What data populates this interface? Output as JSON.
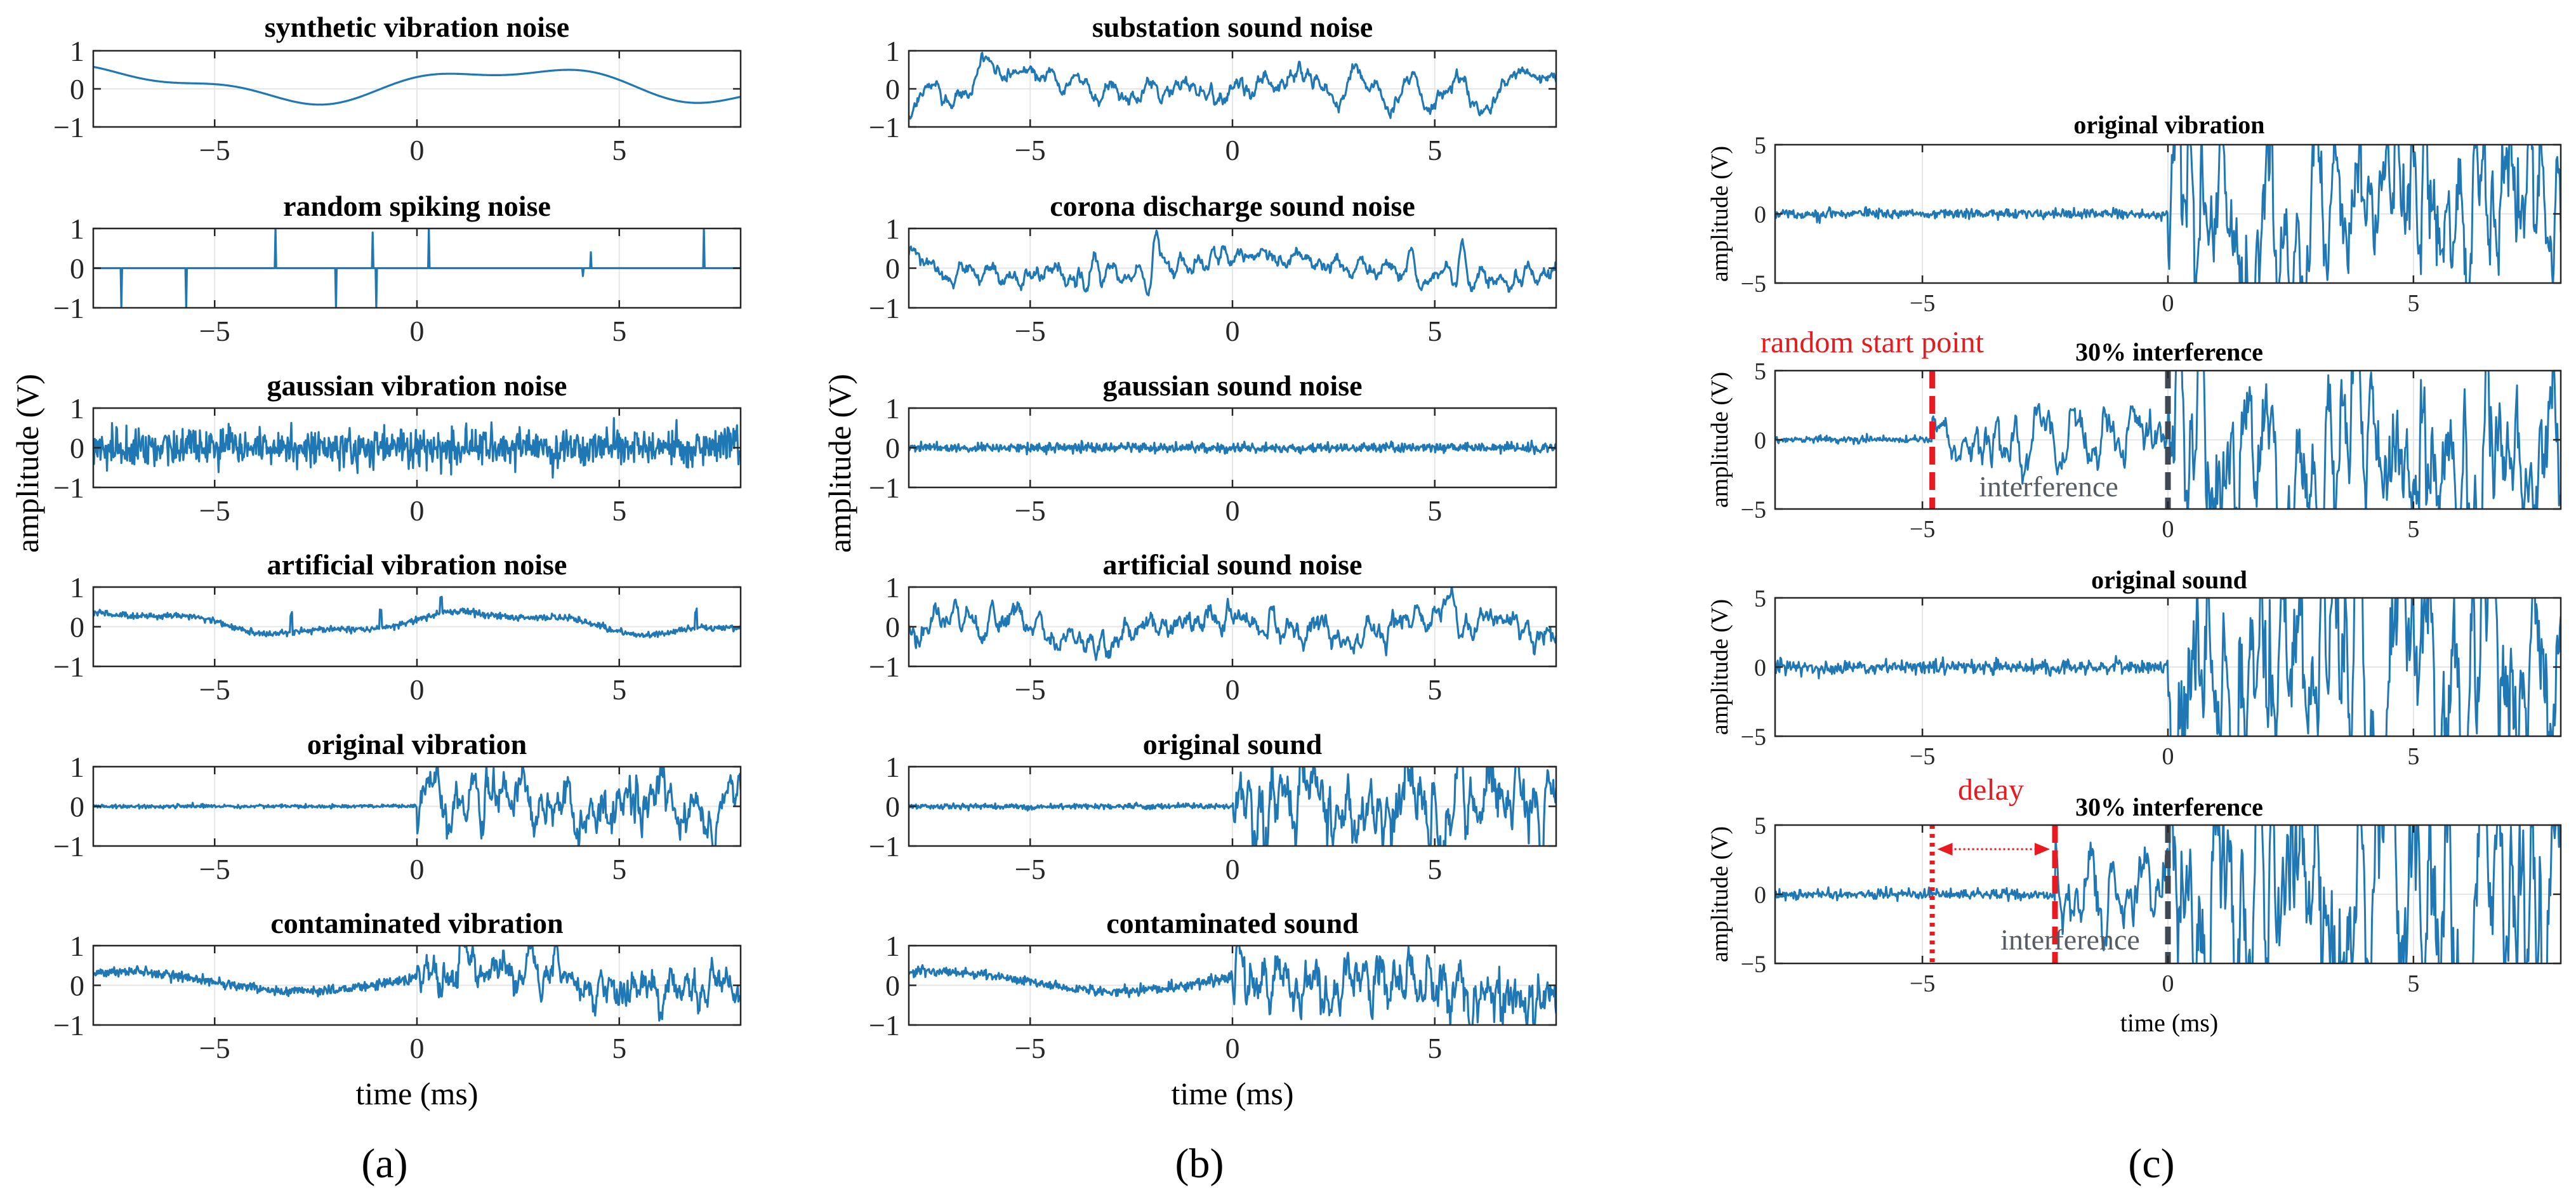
{
  "figure": {
    "panel_labels": [
      "(a)",
      "(b)",
      "(c)"
    ],
    "trace_color": "#1f77b4",
    "annotation_color": "#e8191f",
    "marker_color": "#404a54",
    "axis_color": "#262626",
    "grid_color": "#e6e6e6"
  },
  "chart_data": [
    {
      "type": "line",
      "id": "a-synthetic-vibration-noise",
      "title": "synthetic vibration noise",
      "xlim": [
        -8,
        8
      ],
      "ylim": [
        -1,
        1
      ],
      "xticks": [
        -5,
        0,
        5
      ],
      "yticks": [
        -1,
        0,
        1
      ],
      "xtick_labels": [
        "−5",
        "0",
        "5"
      ],
      "ytick_labels": [
        "−1",
        "0",
        "1"
      ],
      "grid": true,
      "series": [
        {
          "name": "synthetic vibration noise",
          "kind": "synthetic",
          "amplitude": 0.55
        }
      ]
    },
    {
      "type": "line",
      "id": "a-random-spiking-noise",
      "title": "random spiking noise",
      "xlim": [
        -8,
        8
      ],
      "ylim": [
        -1,
        1
      ],
      "xticks": [
        -5,
        0,
        5
      ],
      "yticks": [
        -1,
        0,
        1
      ],
      "xtick_labels": [
        "−5",
        "0",
        "5"
      ],
      "ytick_labels": [
        "−1",
        "0",
        "1"
      ],
      "grid": true,
      "series": [
        {
          "name": "random spiking noise",
          "kind": "spikes",
          "spikes": [
            [
              -7.3,
              -1.0
            ],
            [
              -5.7,
              -1.0
            ],
            [
              -3.5,
              1.0
            ],
            [
              -2.0,
              -1.0
            ],
            [
              -1.1,
              0.9
            ],
            [
              -1.0,
              -1.0
            ],
            [
              0.3,
              1.0
            ],
            [
              4.3,
              0.4
            ],
            [
              4.1,
              -0.2
            ],
            [
              7.1,
              1.0
            ]
          ]
        }
      ]
    },
    {
      "type": "line",
      "id": "a-gaussian-vibration-noise",
      "title": "gaussian vibration noise",
      "xlim": [
        -8,
        8
      ],
      "ylim": [
        -1,
        1
      ],
      "xticks": [
        -5,
        0,
        5
      ],
      "yticks": [
        -1,
        0,
        1
      ],
      "xtick_labels": [
        "−5",
        "0",
        "5"
      ],
      "ytick_labels": [
        "−1",
        "0",
        "1"
      ],
      "grid": true,
      "series": [
        {
          "name": "gaussian vibration noise",
          "kind": "gaussian",
          "sigma": 0.25
        }
      ]
    },
    {
      "type": "line",
      "id": "a-artificial-vibration-noise",
      "title": "artificial vibration noise",
      "xlim": [
        -8,
        8
      ],
      "ylim": [
        -1,
        1
      ],
      "xticks": [
        -5,
        0,
        5
      ],
      "yticks": [
        -1,
        0,
        1
      ],
      "xtick_labels": [
        "−5",
        "0",
        "5"
      ],
      "ytick_labels": [
        "−1",
        "0",
        "1"
      ],
      "grid": true,
      "series": [
        {
          "name": "artificial vibration noise",
          "kind": "artificial",
          "amplitude": 0.45
        }
      ]
    },
    {
      "type": "line",
      "id": "a-original-vibration",
      "title": "original vibration",
      "xlim": [
        -8,
        8
      ],
      "ylim": [
        -1,
        1
      ],
      "xticks": [
        -5,
        0,
        5
      ],
      "yticks": [
        -1,
        0,
        1
      ],
      "xtick_labels": [
        "−5",
        "0",
        "5"
      ],
      "ytick_labels": [
        "−1",
        "0",
        "1"
      ],
      "grid": true,
      "series": [
        {
          "name": "original vibration",
          "kind": "onset",
          "onset": 0,
          "amplitude": 0.55
        }
      ]
    },
    {
      "type": "line",
      "id": "a-contaminated-vibration",
      "title": "contaminated vibration",
      "xlim": [
        -8,
        8
      ],
      "ylim": [
        -1,
        1
      ],
      "xticks": [
        -5,
        0,
        5
      ],
      "yticks": [
        -1,
        0,
        1
      ],
      "xtick_labels": [
        "−5",
        "0",
        "5"
      ],
      "ytick_labels": [
        "−1",
        "0",
        "1"
      ],
      "grid": true,
      "series": [
        {
          "name": "contaminated vibration",
          "kind": "contaminated",
          "amplitude": 0.6
        }
      ]
    },
    {
      "type": "line",
      "id": "b-substation-sound-noise",
      "title": "substation sound noise",
      "xlim": [
        -8,
        8
      ],
      "ylim": [
        -1,
        1
      ],
      "xticks": [
        -5,
        0,
        5
      ],
      "yticks": [
        -1,
        0,
        1
      ],
      "xtick_labels": [
        "−5",
        "0",
        "5"
      ],
      "ytick_labels": [
        "−1",
        "0",
        "1"
      ],
      "grid": true,
      "series": [
        {
          "name": "substation sound noise",
          "kind": "substation",
          "amplitude": 0.45
        }
      ]
    },
    {
      "type": "line",
      "id": "b-corona-discharge-sound-noise",
      "title": "corona discharge sound noise",
      "xlim": [
        -8,
        8
      ],
      "ylim": [
        -1,
        1
      ],
      "xticks": [
        -5,
        0,
        5
      ],
      "yticks": [
        -1,
        0,
        1
      ],
      "xtick_labels": [
        "−5",
        "0",
        "5"
      ],
      "ytick_labels": [
        "−1",
        "0",
        "1"
      ],
      "grid": true,
      "series": [
        {
          "name": "corona discharge sound noise",
          "kind": "corona",
          "amplitude": 0.5
        }
      ]
    },
    {
      "type": "line",
      "id": "b-gaussian-sound-noise",
      "title": "gaussian sound noise",
      "xlim": [
        -8,
        8
      ],
      "ylim": [
        -1,
        1
      ],
      "xticks": [
        -5,
        0,
        5
      ],
      "yticks": [
        -1,
        0,
        1
      ],
      "xtick_labels": [
        "−5",
        "0",
        "5"
      ],
      "ytick_labels": [
        "−1",
        "0",
        "1"
      ],
      "grid": true,
      "series": [
        {
          "name": "gaussian sound noise",
          "kind": "gaussian",
          "sigma": 0.06
        }
      ]
    },
    {
      "type": "line",
      "id": "b-artificial-sound-noise",
      "title": "artificial sound noise",
      "xlim": [
        -8,
        8
      ],
      "ylim": [
        -1,
        1
      ],
      "xticks": [
        -5,
        0,
        5
      ],
      "yticks": [
        -1,
        0,
        1
      ],
      "xtick_labels": [
        "−5",
        "0",
        "5"
      ],
      "ytick_labels": [
        "−1",
        "0",
        "1"
      ],
      "grid": true,
      "series": [
        {
          "name": "artificial sound noise",
          "kind": "artificial-sound",
          "amplitude": 0.7
        }
      ]
    },
    {
      "type": "line",
      "id": "b-original-sound",
      "title": "original sound",
      "xlim": [
        -8,
        8
      ],
      "ylim": [
        -1,
        1
      ],
      "xticks": [
        -5,
        0,
        5
      ],
      "yticks": [
        -1,
        0,
        1
      ],
      "xtick_labels": [
        "−5",
        "0",
        "5"
      ],
      "ytick_labels": [
        "−1",
        "0",
        "1"
      ],
      "grid": true,
      "series": [
        {
          "name": "original sound",
          "kind": "onset",
          "onset": 0,
          "amplitude": 0.8
        }
      ]
    },
    {
      "type": "line",
      "id": "b-contaminated-sound",
      "title": "contaminated sound",
      "xlim": [
        -8,
        8
      ],
      "ylim": [
        -1,
        1
      ],
      "xticks": [
        -5,
        0,
        5
      ],
      "yticks": [
        -1,
        0,
        1
      ],
      "xtick_labels": [
        "−5",
        "0",
        "5"
      ],
      "ytick_labels": [
        "−1",
        "0",
        "1"
      ],
      "grid": true,
      "series": [
        {
          "name": "contaminated sound",
          "kind": "contaminated",
          "amplitude": 0.9
        }
      ]
    },
    {
      "type": "line",
      "id": "c-original-vibration",
      "title": "original vibration",
      "xlim": [
        -8,
        8
      ],
      "ylim": [
        -5,
        5
      ],
      "xticks": [
        -5,
        0,
        5
      ],
      "yticks": [
        -5,
        0,
        5
      ],
      "xtick_labels": [
        "−5",
        "0",
        "5"
      ],
      "ytick_labels": [
        "−5",
        "0",
        "5"
      ],
      "grid": true,
      "series": [
        {
          "name": "original vibration",
          "kind": "onset",
          "onset": 0,
          "amplitude": 4.5
        }
      ]
    },
    {
      "type": "line",
      "id": "c-30-interference-1",
      "title": "30% interference",
      "xlim": [
        -8,
        8
      ],
      "ylim": [
        -5,
        5
      ],
      "xticks": [
        -5,
        0,
        5
      ],
      "yticks": [
        -5,
        0,
        5
      ],
      "xtick_labels": [
        "−5",
        "0",
        "5"
      ],
      "ytick_labels": [
        "−5",
        "0",
        "5"
      ],
      "grid": true,
      "series": [
        {
          "name": "30% interference",
          "kind": "interference",
          "onset": 0,
          "amplitude": 4.5,
          "interference_start": -4.8
        }
      ],
      "annotations": [
        {
          "type": "dashed-line",
          "x": -4.8,
          "color": "red"
        },
        {
          "type": "dashed-line",
          "x": 0,
          "color": "gray"
        },
        {
          "type": "text",
          "text": "random start point",
          "color": "red"
        },
        {
          "type": "text",
          "text": "interference",
          "color": "gray"
        }
      ]
    },
    {
      "type": "line",
      "id": "c-original-sound",
      "title": "original sound",
      "xlim": [
        -8,
        8
      ],
      "ylim": [
        -5,
        5
      ],
      "xticks": [
        -5,
        0,
        5
      ],
      "yticks": [
        -5,
        0,
        5
      ],
      "xtick_labels": [
        "−5",
        "0",
        "5"
      ],
      "ytick_labels": [
        "−5",
        "0",
        "5"
      ],
      "grid": true,
      "series": [
        {
          "name": "original sound",
          "kind": "onset",
          "onset": 0,
          "amplitude": 6.5
        }
      ]
    },
    {
      "type": "line",
      "id": "c-30-interference-2",
      "title": "30% interference",
      "xlim": [
        -8,
        8
      ],
      "ylim": [
        -5,
        5
      ],
      "xticks": [
        -5,
        0,
        5
      ],
      "yticks": [
        -5,
        0,
        5
      ],
      "xtick_labels": [
        "−5",
        "0",
        "5"
      ],
      "ytick_labels": [
        "−5",
        "0",
        "5"
      ],
      "grid": true,
      "series": [
        {
          "name": "30% interference",
          "kind": "interference",
          "onset": 0,
          "amplitude": 6.5,
          "interference_start": -2.3
        }
      ],
      "annotations": [
        {
          "type": "dotted-line",
          "x": -4.8,
          "color": "red"
        },
        {
          "type": "dashed-line",
          "x": -2.3,
          "color": "red"
        },
        {
          "type": "dashed-line",
          "x": 0,
          "color": "gray"
        },
        {
          "type": "arrow",
          "from": -4.8,
          "to": -2.3,
          "color": "red"
        },
        {
          "type": "text",
          "text": "delay",
          "color": "red"
        },
        {
          "type": "text",
          "text": "interference",
          "color": "gray"
        }
      ]
    }
  ],
  "axis_labels": {
    "ylabel": "amplitude (V)",
    "xlabel": "time (ms)"
  }
}
